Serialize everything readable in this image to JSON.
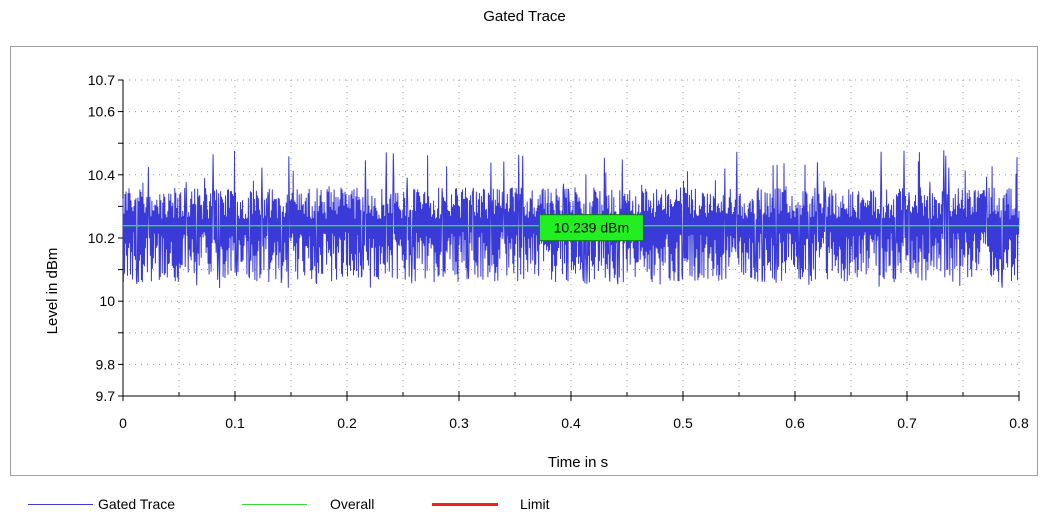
{
  "chart_data": {
    "type": "line",
    "title": "Gated Trace",
    "xlabel": "Time in s",
    "ylabel": "Level in dBm",
    "xlim": [
      0,
      0.8
    ],
    "ylim": [
      9.7,
      10.7
    ],
    "x_ticks": [
      "0",
      "0.1",
      "0.2",
      "0.3",
      "0.4",
      "0.5",
      "0.6",
      "0.7",
      "0.8"
    ],
    "y_ticks": [
      "9.7",
      "9.8",
      "10",
      "10.2",
      "10.4",
      "10.6",
      "10.7"
    ],
    "grid": true,
    "legend_position": "bottom",
    "series": [
      {
        "name": "Gated Trace",
        "color": "#3a3ad8",
        "description_values": {
          "mean": 10.239,
          "typical_min": 10.08,
          "typical_max": 10.36,
          "peak_max": 10.48,
          "peak_min": 10.05
        }
      },
      {
        "name": "Overall",
        "color": "#33dd33",
        "values": [
          10.239,
          10.239
        ]
      },
      {
        "name": "Limit",
        "color": "#ee2222",
        "values": []
      }
    ],
    "annotation": {
      "text": "10.239 dBm",
      "x": 0.42,
      "y": 10.239,
      "color": "#22ee22"
    }
  },
  "legend": {
    "items": [
      {
        "label": "Gated Trace",
        "color": "#3a3ad8"
      },
      {
        "label": "Overall",
        "color": "#33dd33"
      },
      {
        "label": "Limit",
        "color": "#ee2222"
      }
    ]
  }
}
